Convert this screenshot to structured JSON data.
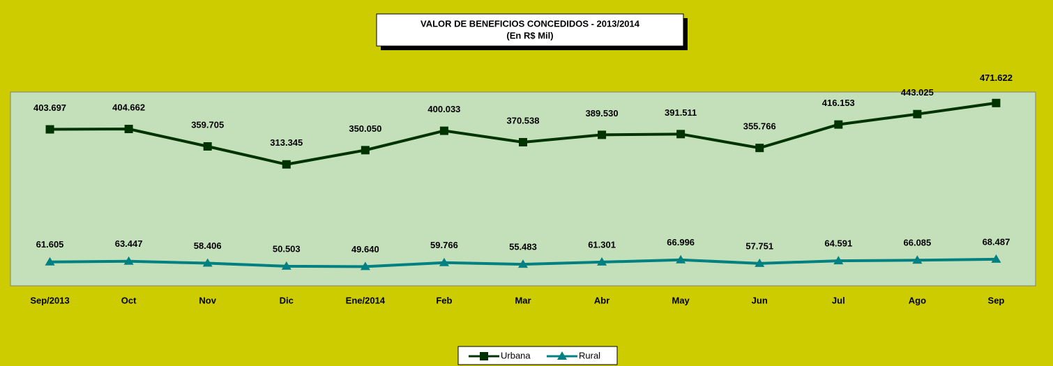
{
  "chart_data": {
    "type": "line",
    "title": "VALOR DE BENEFICIOS CONCEDIDOS - 2013/2014",
    "subtitle": "(En R$ Mil)",
    "categories": [
      "Sep/2013",
      "Oct",
      "Nov",
      "Dic",
      "Ene/2014",
      "Feb",
      "Mar",
      "Abr",
      "May",
      "Jun",
      "Jul",
      "Ago",
      "Sep"
    ],
    "series": [
      {
        "name": "Urbana",
        "color": "#003300",
        "marker": "square",
        "values": [
          403697,
          404662,
          359705,
          313345,
          350050,
          400033,
          370538,
          389530,
          391511,
          355766,
          416153,
          443025,
          471622
        ],
        "value_labels": [
          "403.697",
          "404.662",
          "359.705",
          "313.345",
          "350.050",
          "400.033",
          "370.538",
          "389.530",
          "391.511",
          "355.766",
          "416.153",
          "443.025",
          "471.622"
        ]
      },
      {
        "name": "Rural",
        "color": "#008080",
        "marker": "triangle",
        "values": [
          61605,
          63447,
          58406,
          50503,
          49640,
          59766,
          55483,
          61301,
          66996,
          57751,
          64591,
          66085,
          68487
        ],
        "value_labels": [
          "61.605",
          "63.447",
          "58.406",
          "50.503",
          "49.640",
          "59.766",
          "55.483",
          "61.301",
          "66.996",
          "57.751",
          "64.591",
          "66.085",
          "68.487"
        ]
      }
    ],
    "ylim": [
      0,
      500000
    ],
    "legend": "bottom"
  }
}
